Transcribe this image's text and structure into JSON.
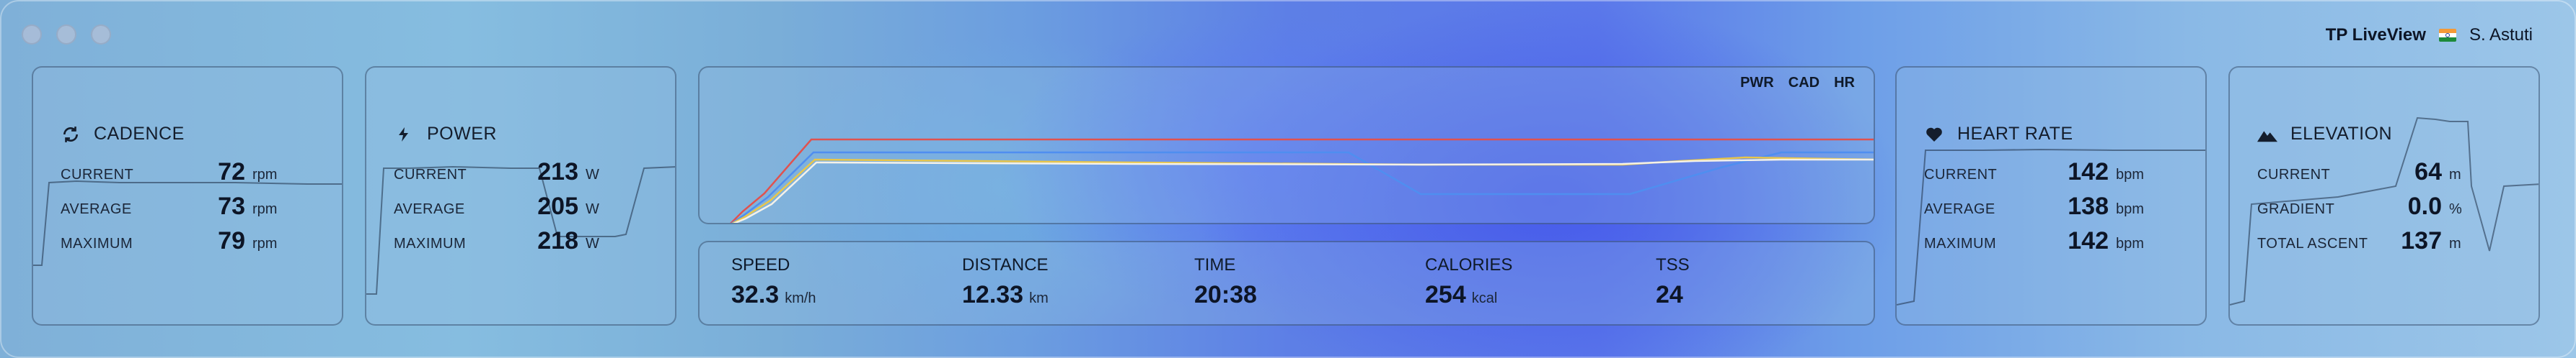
{
  "window": {
    "title": "TP LiveView",
    "user": "S. Astuti",
    "flag_icon": "india-flag-icon"
  },
  "colors": {
    "power_line": "#e0524f",
    "cadence_line": "#e9c64a",
    "heart_line": "#f4f1e8",
    "elevation_line": "#4f8ef0"
  },
  "cadence": {
    "title": "CADENCE",
    "icon": "refresh-icon",
    "rows": [
      {
        "label": "CURRENT",
        "value": "72",
        "unit": "rpm"
      },
      {
        "label": "AVERAGE",
        "value": "73",
        "unit": "rpm"
      },
      {
        "label": "MAXIMUM",
        "value": "79",
        "unit": "rpm"
      }
    ]
  },
  "power": {
    "title": "POWER",
    "icon": "lightning-bolt-icon",
    "rows": [
      {
        "label": "CURRENT",
        "value": "213",
        "unit": "W"
      },
      {
        "label": "AVERAGE",
        "value": "205",
        "unit": "W"
      },
      {
        "label": "MAXIMUM",
        "value": "218",
        "unit": "W"
      }
    ]
  },
  "graph": {
    "legend": [
      "PWR",
      "CAD",
      "HR"
    ]
  },
  "stats": [
    {
      "label": "SPEED",
      "value": "32.3",
      "unit": "km/h"
    },
    {
      "label": "DISTANCE",
      "value": "12.33",
      "unit": "km"
    },
    {
      "label": "TIME",
      "value": "20:38",
      "unit": ""
    },
    {
      "label": "CALORIES",
      "value": "254",
      "unit": "kcal"
    },
    {
      "label": "TSS",
      "value": "24",
      "unit": ""
    }
  ],
  "heart": {
    "title": "HEART RATE",
    "icon": "heart-icon",
    "rows": [
      {
        "label": "CURRENT",
        "value": "142",
        "unit": "bpm"
      },
      {
        "label": "AVERAGE",
        "value": "138",
        "unit": "bpm"
      },
      {
        "label": "MAXIMUM",
        "value": "142",
        "unit": "bpm"
      }
    ]
  },
  "elevation": {
    "title": "ELEVATION",
    "icon": "mountain-icon",
    "rows": [
      {
        "label": "CURRENT",
        "value": "64",
        "unit": "m"
      },
      {
        "label": "GRADIENT",
        "value": "0.0",
        "unit": "%"
      },
      {
        "label": "TOTAL ASCENT",
        "value": "137",
        "unit": "m"
      }
    ]
  }
}
